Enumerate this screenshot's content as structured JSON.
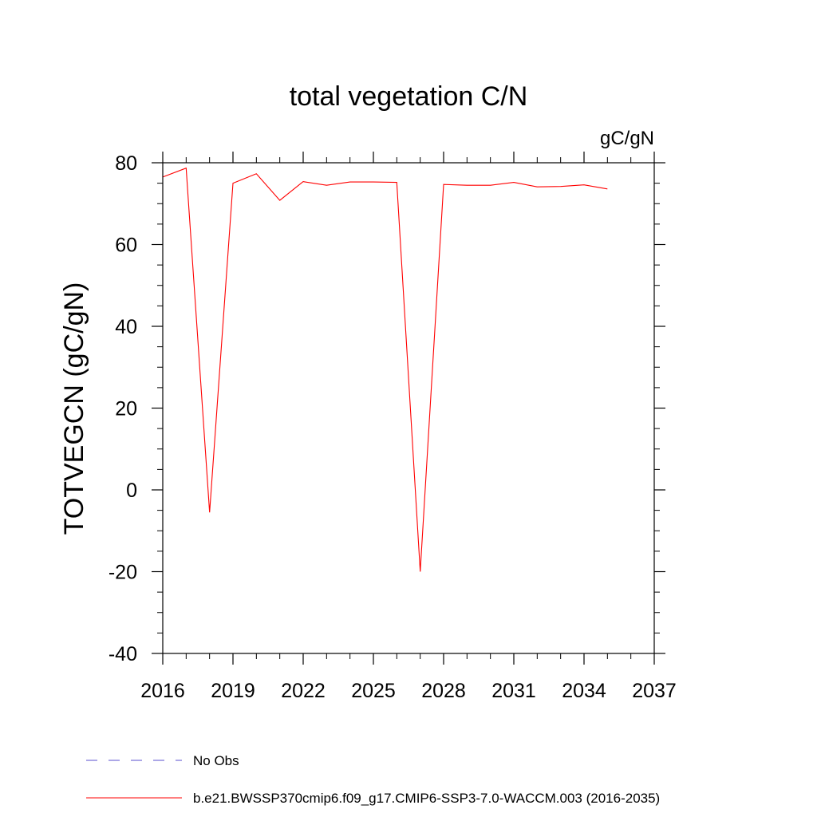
{
  "chart_data": {
    "type": "line",
    "title": "total vegetation C/N",
    "units_label": "gC/gN",
    "ylabel": "TOTVEGCN  (gC/gN)",
    "xlabel": "",
    "xlim": [
      2016,
      2037
    ],
    "ylim": [
      -40,
      80
    ],
    "x_ticks": [
      2016,
      2019,
      2022,
      2025,
      2028,
      2031,
      2034,
      2037
    ],
    "y_ticks": [
      -40,
      -20,
      0,
      20,
      40,
      60,
      80
    ],
    "x_minor_step": 1,
    "y_minor_step": 5,
    "grid": false,
    "series": [
      {
        "name": "No Obs",
        "color": "#5a4fcf",
        "style": "dashed",
        "x": [],
        "values": []
      },
      {
        "name": "b.e21.BWSSP370cmip6.f09_g17.CMIP6-SSP3-7.0-WACCM.003 (2016-2035)",
        "color": "#ff0000",
        "style": "solid",
        "x": [
          2016,
          2017,
          2018,
          2019,
          2020,
          2021,
          2022,
          2023,
          2024,
          2025,
          2026,
          2027,
          2028,
          2029,
          2030,
          2031,
          2032,
          2033,
          2034,
          2035
        ],
        "values": [
          76.5,
          78.7,
          -5.5,
          75.0,
          77.3,
          70.8,
          75.4,
          74.5,
          75.3,
          75.3,
          75.2,
          -20.0,
          74.7,
          74.5,
          74.5,
          75.2,
          74.1,
          74.2,
          74.6,
          73.6
        ]
      }
    ],
    "legend_position": "bottom"
  }
}
